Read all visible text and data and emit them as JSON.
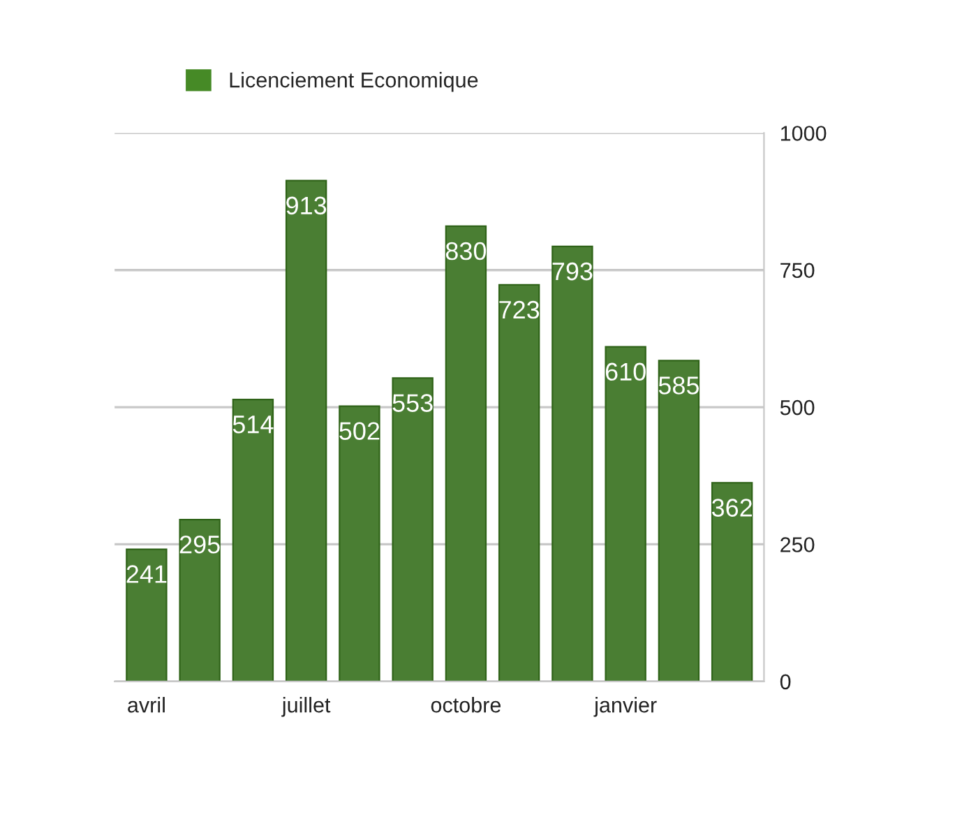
{
  "chart_data": {
    "type": "bar",
    "categories": [
      "avril",
      null,
      null,
      "juillet",
      null,
      null,
      "octobre",
      null,
      null,
      "janvier",
      null,
      null
    ],
    "series": [
      {
        "name": "Licenciement Economique",
        "color": "#468a26",
        "values": [
          241,
          295,
          514,
          913,
          502,
          553,
          830,
          723,
          793,
          610,
          585,
          362
        ]
      }
    ],
    "ylim": [
      0,
      1000
    ],
    "yticks": [
      0,
      250,
      500,
      750,
      1000
    ],
    "grid": "y",
    "legend": "top left",
    "data_labels": true
  }
}
